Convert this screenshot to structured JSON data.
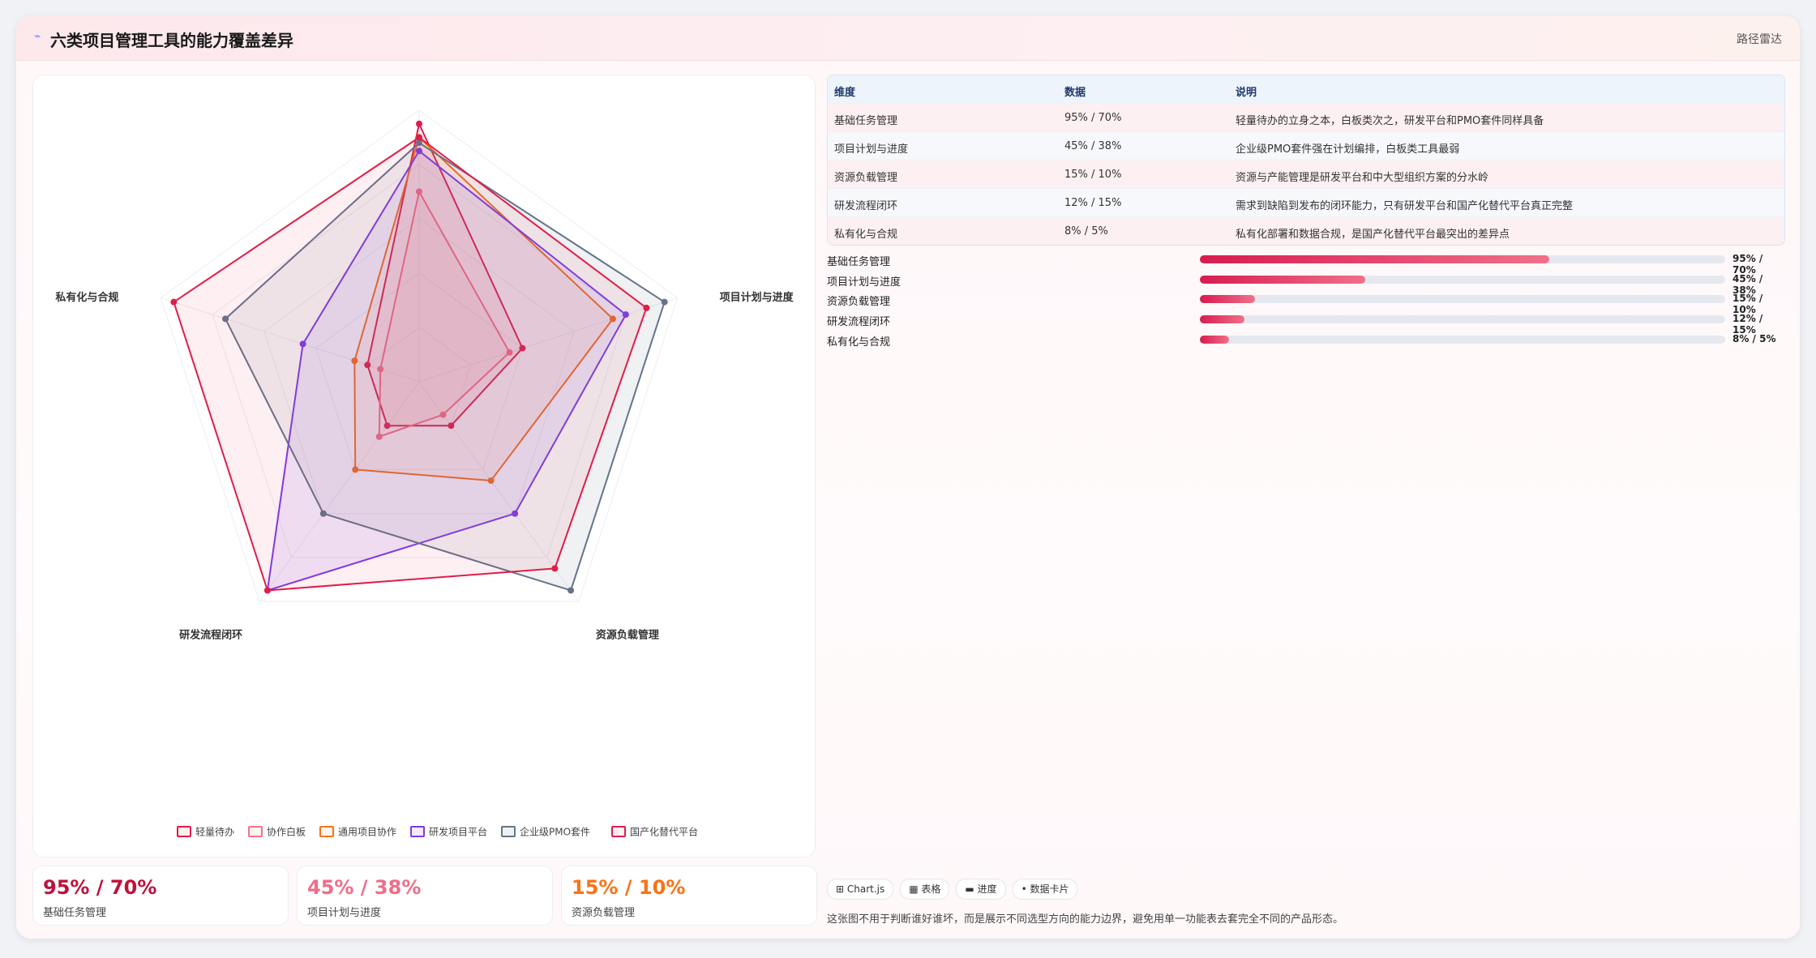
{
  "header": {
    "logo": "⌁",
    "title": "六类项目管理工具的能力覆盖差异",
    "tag": "路径雷达"
  },
  "chart_data": {
    "type": "radar",
    "axes": [
      "基础任务管理",
      "项目计划与进度",
      "资源负载管理",
      "研发流程闭环",
      "私有化与合规"
    ],
    "rmax": 100,
    "series": [
      {
        "name": "轻量待办",
        "color": "#e11d48",
        "fill": "rgba(225,29,72,0.07)",
        "values": [
          95,
          40,
          20,
          20,
          20
        ]
      },
      {
        "name": "协作白板",
        "color": "#fb7185",
        "fill": "rgba(251,113,133,0.07)",
        "values": [
          70,
          35,
          15,
          25,
          15
        ]
      },
      {
        "name": "通用项目协作",
        "color": "#f97316",
        "fill": "rgba(249,115,22,0.07)",
        "values": [
          90,
          75,
          45,
          40,
          25
        ]
      },
      {
        "name": "研发项目平台",
        "color": "#7c3aed",
        "fill": "rgba(124,58,237,0.10)",
        "values": [
          85,
          80,
          60,
          95,
          45
        ]
      },
      {
        "name": "企业级PMO套件",
        "color": "#64748b",
        "fill": "rgba(100,116,139,0.10)",
        "values": [
          88,
          95,
          95,
          60,
          75
        ]
      },
      {
        "name": "国产化替代平台",
        "color": "#e11d48",
        "fill": "rgba(225,29,72,0.07)",
        "values": [
          90,
          88,
          85,
          95,
          95
        ]
      }
    ]
  },
  "table": {
    "headers": [
      "维度",
      "数据",
      "说明"
    ],
    "rows": [
      [
        "基础任务管理",
        "95% / 70%",
        "轻量待办的立身之本，白板类次之，研发平台和PMO套件同样具备"
      ],
      [
        "项目计划与进度",
        "45% / 38%",
        "企业级PMO套件强在计划编排，白板类工具最弱"
      ],
      [
        "资源负载管理",
        "15% / 10%",
        "资源与产能管理是研发平台和中大型组织方案的分水岭"
      ],
      [
        "研发流程闭环",
        "12% / 15%",
        "需求到缺陷到发布的闭环能力，只有研发平台和国产化替代平台真正完整"
      ],
      [
        "私有化与合规",
        "8% / 5%",
        "私有化部署和数据合规，是国产化替代平台最突出的差异点"
      ]
    ]
  },
  "progress": [
    {
      "label": "基础任务管理",
      "value": "95% / 70%",
      "fraction": 0.665
    },
    {
      "label": "项目计划与进度",
      "value": "45% / 38%",
      "fraction": 0.315
    },
    {
      "label": "资源负载管理",
      "value": "15% / 10%",
      "fraction": 0.105
    },
    {
      "label": "研发流程闭环",
      "value": "12% / 15%",
      "fraction": 0.085
    },
    {
      "label": "私有化与合规",
      "value": "8% / 5%",
      "fraction": 0.056
    }
  ],
  "stats": [
    {
      "value": "95% / 70%",
      "label": "基础任务管理",
      "color": "#be123c"
    },
    {
      "value": "45% / 38%",
      "label": "项目计划与进度",
      "color": "#f06d8a"
    },
    {
      "value": "15% / 10%",
      "label": "资源负载管理",
      "color": "#f97316"
    }
  ],
  "chips": [
    "⊞ Chart.js",
    "▦ 表格",
    "▬ 进度",
    "• 数据卡片"
  ],
  "note": "这张图不用于判断谁好谁坏，而是展示不同选型方向的能力边界，避免用单一功能表去套完全不同的产品形态。"
}
